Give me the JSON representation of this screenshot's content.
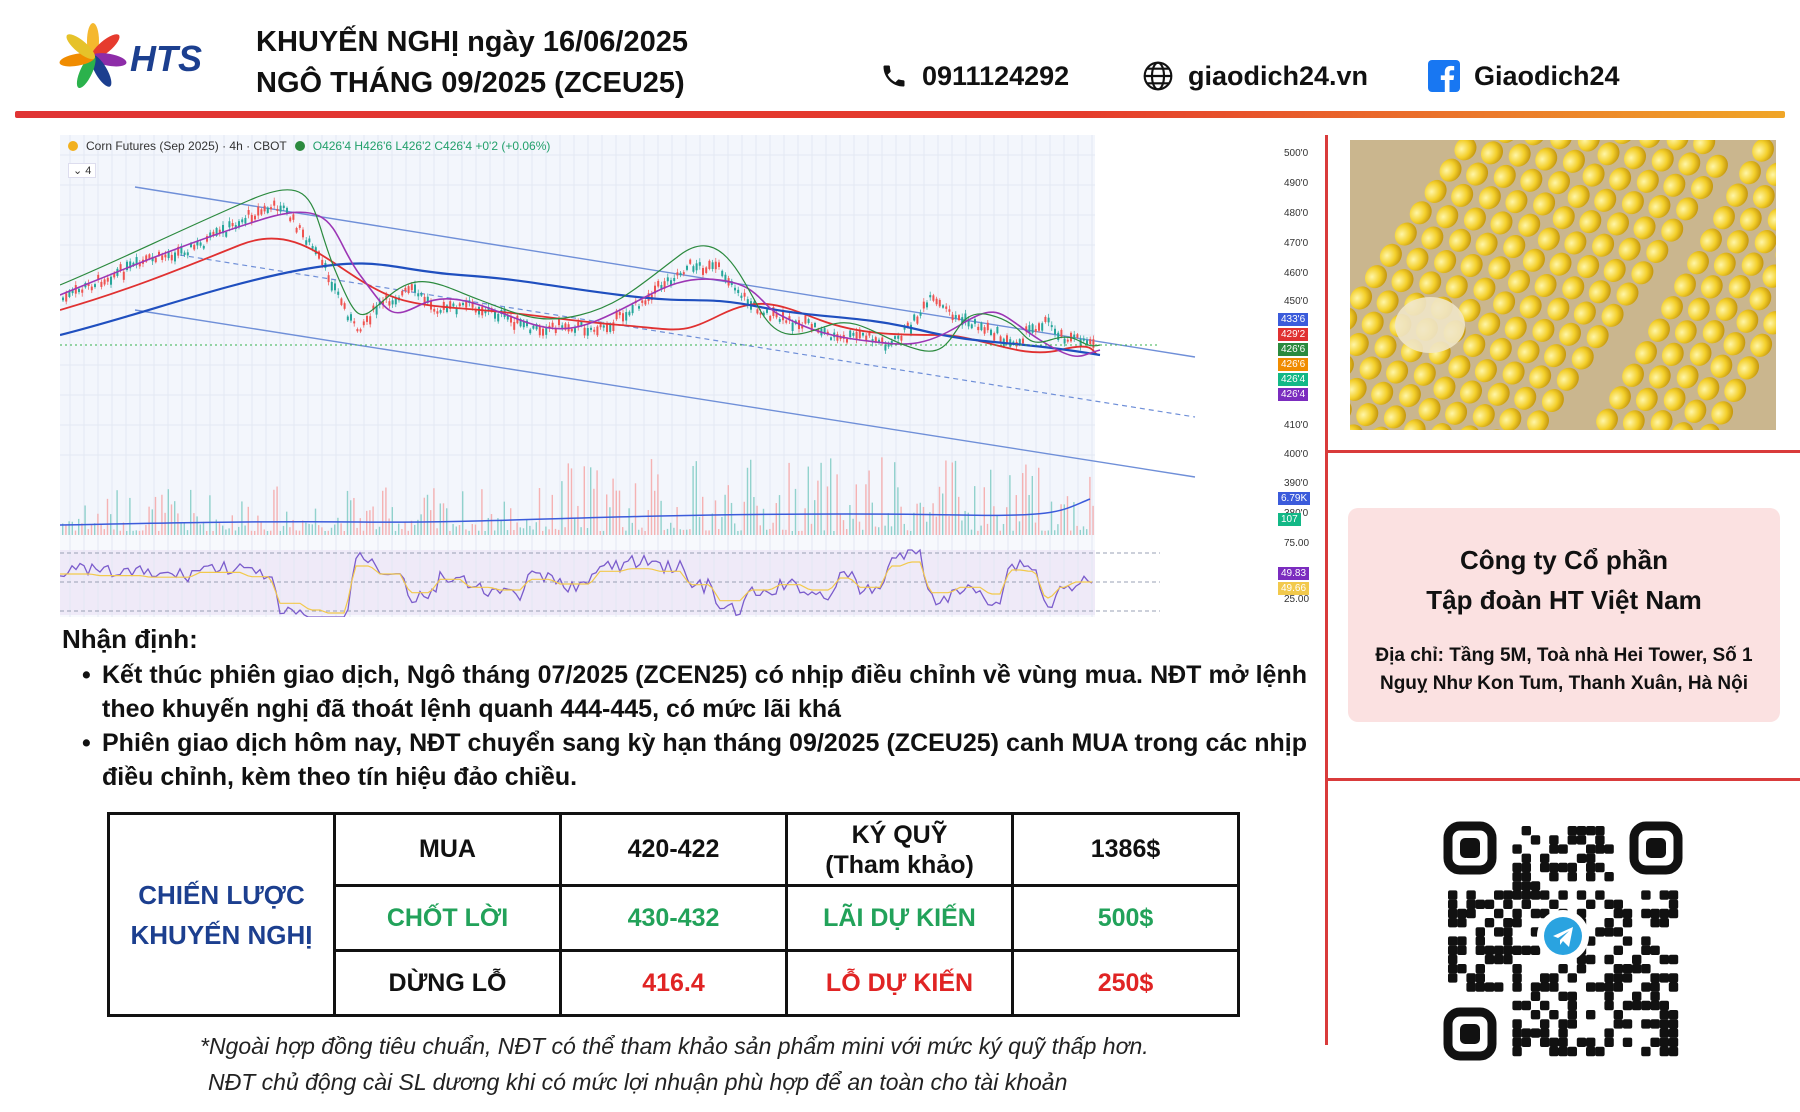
{
  "header": {
    "brand": "HTS",
    "title_line1": "KHUYẾN NGHỊ ngày 16/06/2025",
    "title_line2": "NGÔ THÁNG 09/2025 (ZCEU25)",
    "phone": "0911124292",
    "website": "giaodich24.vn",
    "facebook": "Giaodich24"
  },
  "chart": {
    "legend_symbol": "Corn Futures (Sep 2025) · 4h · CBOT",
    "legend_ohlc": "O426'4  H426'6  L426'2  C426'4  +0'2 (+0.06%)",
    "indicator_count": "4",
    "price_ticks": [
      "500'0",
      "490'0",
      "480'0",
      "470'0",
      "460'0",
      "450'0",
      "410'0",
      "400'0",
      "390'0",
      "380'0"
    ],
    "price_tags": [
      {
        "label": "433'6",
        "color": "#3b5bdb"
      },
      {
        "label": "429'2",
        "color": "#e03131"
      },
      {
        "label": "426'6",
        "color": "#2b8a3e"
      },
      {
        "label": "426'6",
        "color": "#f08c00"
      },
      {
        "label": "426'4",
        "color": "#12b886"
      },
      {
        "label": "426'4",
        "color": "#7b2cbf"
      }
    ],
    "volume_tags": [
      {
        "label": "6.79K",
        "color": "#3b5bdb"
      },
      {
        "label": "107",
        "color": "#12b886"
      }
    ],
    "rsi_ticks": [
      "75.00",
      "25.00"
    ],
    "rsi_tags": [
      {
        "label": "49.83",
        "color": "#7b2cbf"
      },
      {
        "label": "49.66",
        "color": "#f2c94c"
      }
    ]
  },
  "analysis": {
    "title": "Nhận định:",
    "bullets": [
      "Kết thúc phiên giao dịch, Ngô tháng 07/2025 (ZCEN25) có nhịp điều chỉnh về vùng mua. NĐT mở lệnh theo khuyến nghị đã thoát lệnh quanh 444-445, có mức lãi khá",
      "Phiên giao dịch hôm nay, NĐT chuyển sang kỳ hạn tháng 09/2025 (ZCEU25) canh MUA trong các nhịp điều chỉnh, kèm theo tín hiệu đảo chiều."
    ]
  },
  "strategy": {
    "label_line1": "CHIẾN LƯỢC",
    "label_line2": "KHUYẾN NGHỊ",
    "buy_label": "MUA",
    "buy_value": "420-422",
    "margin_label_line1": "KÝ QUỸ",
    "margin_label_line2": "(Tham khảo)",
    "margin_value": "1386$",
    "tp_label": "CHỐT LỜI",
    "tp_value": "430-432",
    "profit_label": "LÃI DỰ KIẾN",
    "profit_value": "500$",
    "sl_label": "DỪNG LỖ",
    "sl_value": "416.4",
    "loss_label": "LỖ DỰ KIẾN",
    "loss_value": "250$"
  },
  "footnote": {
    "line1": "*Ngoài hợp đồng tiêu chuẩn, NĐT có thể tham khảo sản phẩm mini với mức ký quỹ thấp hơn.",
    "line2": "NĐT chủ động cài SL dương khi có mức lợi nhuận phù hợp để an toàn cho tài khoản"
  },
  "company": {
    "name_line1": "Công ty Cổ phần",
    "name_line2": "Tập đoàn HT Việt Nam",
    "address_line1": "Địa chỉ: Tầng 5M, Toà nhà Hei Tower, Số 1",
    "address_line2": "Nguỵ Như Kon Tum, Thanh Xuân, Hà Nội"
  },
  "colors": {
    "accent_red": "#d93b3b",
    "brand_blue": "#1c3f8f",
    "profit_green": "#22a25a",
    "loss_red": "#e02424"
  },
  "icons": [
    "hts-logo-icon",
    "phone-icon",
    "globe-icon",
    "facebook-icon",
    "telegram-icon",
    "qr-code"
  ]
}
